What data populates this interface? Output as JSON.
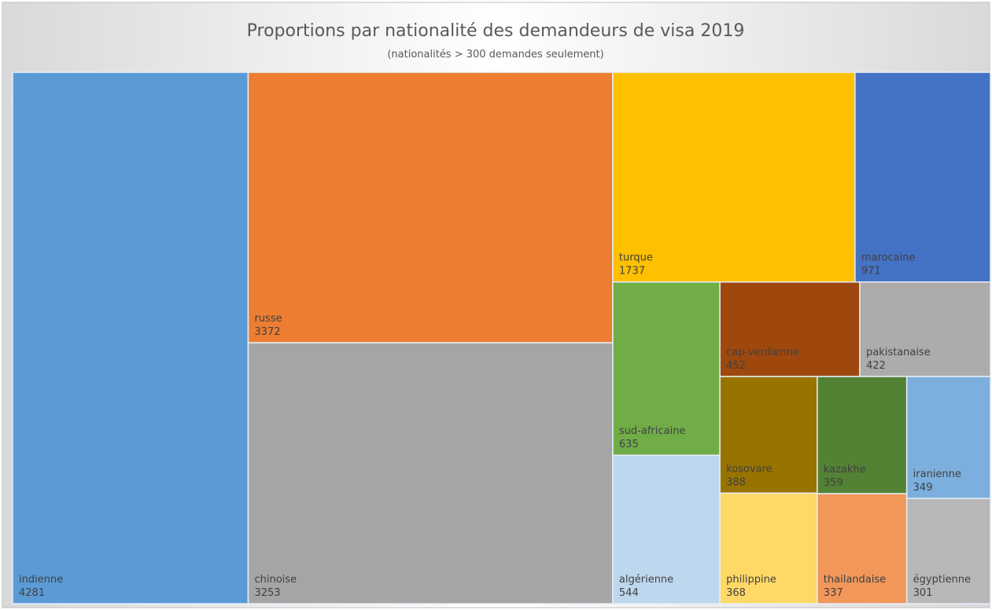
{
  "chart_data": {
    "type": "treemap",
    "title": "Proportions par nationalité des demandeurs de visa 2019",
    "subtitle": "(nationalités > 300 demandes seulement)",
    "categories": [
      "indienne",
      "russe",
      "chinoise",
      "turque",
      "marocaine",
      "sud-africaine",
      "algérienne",
      "cap-verdienne",
      "pakistanaise",
      "kosovare",
      "philippine",
      "kazakhe",
      "thailandaise",
      "iranienne",
      "égyptienne"
    ],
    "values": [
      4281,
      3372,
      3253,
      1737,
      971,
      635,
      544,
      452,
      422,
      388,
      368,
      359,
      337,
      349,
      301
    ],
    "colors": [
      "#5b9bd5",
      "#ed7d31",
      "#a5a5a5",
      "#ffc000",
      "#4472c4",
      "#70ad47",
      "#bdd7ee",
      "#9e480e",
      "#aeabab",
      "#997300",
      "#ffd966",
      "#548235",
      "#f1975a",
      "#7cafdd",
      "#b7b7b7"
    ]
  }
}
